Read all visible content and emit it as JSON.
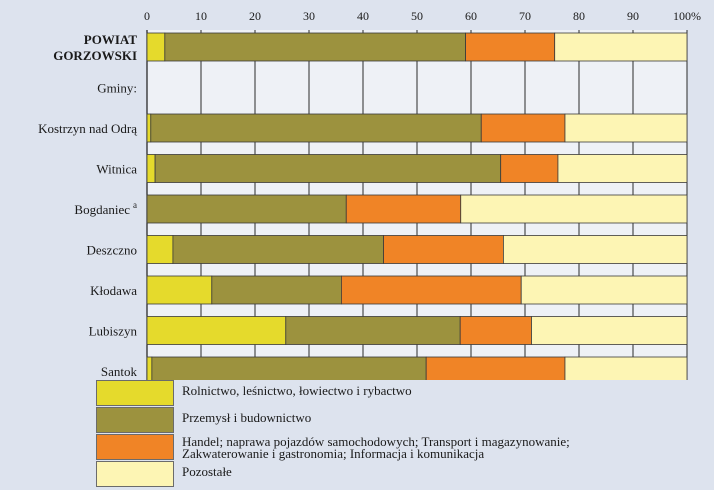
{
  "chart_data": {
    "type": "bar",
    "orientation": "horizontal",
    "stacked": true,
    "xlim": [
      0,
      100
    ],
    "x_ticks": [
      "0",
      "10",
      "20",
      "30",
      "40",
      "50",
      "60",
      "70",
      "80",
      "90",
      "100%"
    ],
    "grid": true,
    "rows": [
      {
        "label": "POWIAT GORZOWSKI",
        "lines": [
          "POWIAT",
          "GORZOWSKI"
        ],
        "bold": true,
        "values": [
          3.3,
          55.7,
          16.5,
          24.5
        ]
      },
      {
        "label": "Gminy:",
        "lines": [
          "Gminy:"
        ],
        "header": true,
        "values": null
      },
      {
        "label": "Kostrzyn nad Odrą",
        "lines": [
          "Kostrzyn nad Odrą"
        ],
        "values": [
          0.7,
          61.2,
          15.5,
          22.6
        ]
      },
      {
        "label": "Witnica",
        "lines": [
          "Witnica"
        ],
        "values": [
          1.5,
          64.0,
          10.6,
          23.9
        ]
      },
      {
        "label": "Bogdaniec",
        "lines": [
          "Bogdaniec"
        ],
        "sup": "a",
        "values": [
          0.0,
          36.9,
          21.2,
          41.9
        ]
      },
      {
        "label": "Deszczno",
        "lines": [
          "Deszczno"
        ],
        "values": [
          4.8,
          39.0,
          22.2,
          34.0
        ]
      },
      {
        "label": "Kłodawa",
        "lines": [
          "Kłodawa"
        ],
        "values": [
          12.0,
          24.0,
          33.3,
          30.7
        ]
      },
      {
        "label": "Lubiszyn",
        "lines": [
          "Lubiszyn"
        ],
        "values": [
          25.7,
          32.3,
          13.2,
          28.8
        ]
      },
      {
        "label": "Santok",
        "lines": [
          "Santok"
        ],
        "values": [
          0.9,
          50.8,
          25.7,
          22.6
        ]
      }
    ],
    "series": [
      {
        "name": "Rolnictwo, leśnictwo, łowiectwo i rybactwo",
        "color": "#e5da2c"
      },
      {
        "name": "Przemysł i budownictwo",
        "color": "#9c923e"
      },
      {
        "name": "Handel; naprawa pojazdów samochodowych; Transport i magazynowanie; Zakwaterowanie i gastronomia; Informacja i komunikacja",
        "color": "#f08426"
      },
      {
        "name": "Pozostałe",
        "color": "#fdf5b4"
      }
    ]
  },
  "legend": [
    {
      "label": "Rolnictwo, leśnictwo, łowiectwo i rybactwo",
      "color": "#e5da2c"
    },
    {
      "label": "Przemysł i budownictwo",
      "color": "#9c923e"
    },
    {
      "label": "Handel; naprawa pojazdów samochodowych; Transport i magazynowanie;",
      "label2": "Zakwaterowanie i gastronomia; Informacja i komunikacja",
      "color": "#f08426"
    },
    {
      "label": "Pozostałe",
      "color": "#fdf5b4"
    }
  ]
}
